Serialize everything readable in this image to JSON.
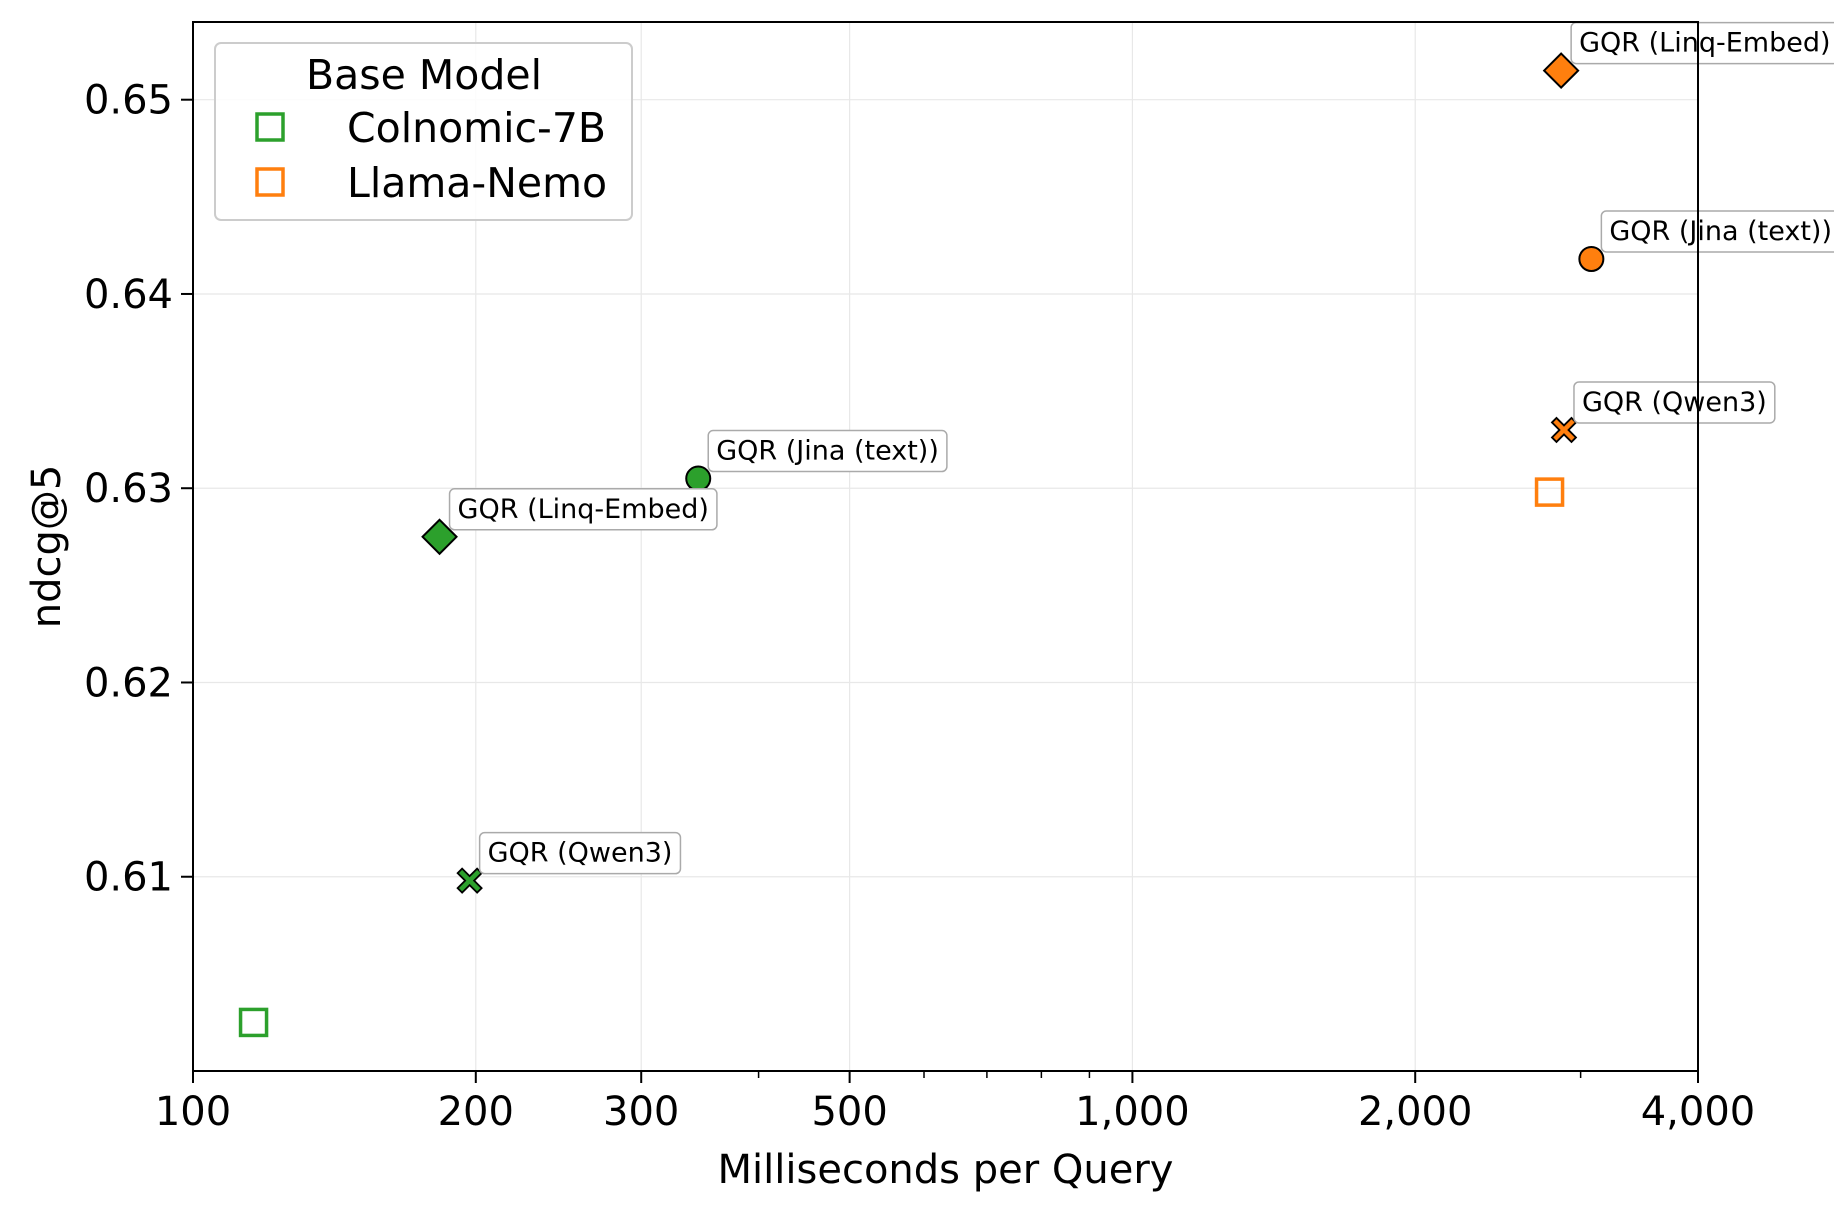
{
  "chart_data": {
    "type": "scatter",
    "xlabel": "Milliseconds per Query",
    "ylabel": "ndcg@5",
    "xscale": "log",
    "xlim": [
      100,
      4000
    ],
    "ylim": [
      0.6,
      0.654
    ],
    "xticks": [
      {
        "value": 100,
        "label": "100"
      },
      {
        "value": 200,
        "label": "200"
      },
      {
        "value": 300,
        "label": "300"
      },
      {
        "value": 500,
        "label": "500"
      },
      {
        "value": 1000,
        "label": "1,000"
      },
      {
        "value": 2000,
        "label": "2,000"
      },
      {
        "value": 4000,
        "label": "4,000"
      }
    ],
    "yticks": [
      {
        "value": 0.61,
        "label": "0.61"
      },
      {
        "value": 0.62,
        "label": "0.62"
      },
      {
        "value": 0.63,
        "label": "0.63"
      },
      {
        "value": 0.64,
        "label": "0.64"
      },
      {
        "value": 0.65,
        "label": "0.65"
      }
    ],
    "grid": true,
    "legend": {
      "title": "Base Model",
      "placement": "top-left",
      "entries": [
        {
          "label": "Colnomic-7B",
          "color": "#2ca02c",
          "marker": "square-outline"
        },
        {
          "label": "Llama-Nemo",
          "color": "#ff7f0e",
          "marker": "square-outline"
        }
      ]
    },
    "series": [
      {
        "name": "Colnomic-7B",
        "color": "#2ca02c",
        "points": [
          {
            "x": 116,
            "y": 0.6025,
            "marker": "square-outline",
            "label": ""
          },
          {
            "x": 183,
            "y": 0.6275,
            "marker": "diamond",
            "label": "GQR (Linq-Embed)"
          },
          {
            "x": 197,
            "y": 0.6098,
            "marker": "x",
            "label": "GQR (Qwen3)"
          },
          {
            "x": 345,
            "y": 0.6305,
            "marker": "circle",
            "label": "GQR (Jina (text))"
          }
        ]
      },
      {
        "name": "Llama-Nemo",
        "color": "#ff7f0e",
        "points": [
          {
            "x": 2780,
            "y": 0.6298,
            "marker": "square-outline",
            "label": ""
          },
          {
            "x": 2860,
            "y": 0.6515,
            "marker": "diamond",
            "label": "GQR (Linq-Embed)"
          },
          {
            "x": 2880,
            "y": 0.633,
            "marker": "x",
            "label": "GQR (Qwen3)"
          },
          {
            "x": 3080,
            "y": 0.6418,
            "marker": "circle",
            "label": "GQR (Jina (text))"
          }
        ]
      }
    ]
  }
}
